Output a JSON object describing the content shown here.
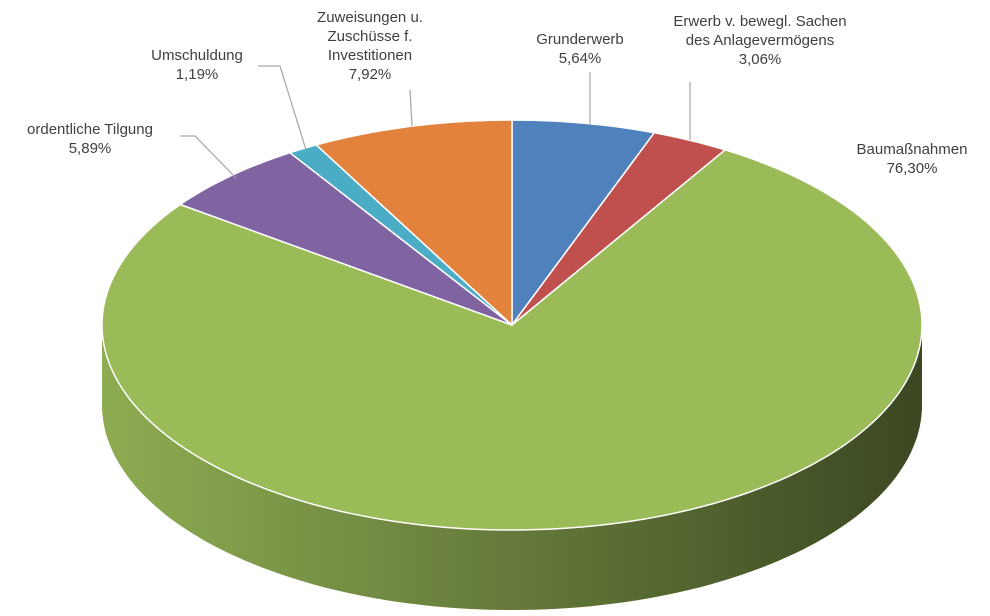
{
  "chart_data": {
    "type": "pie",
    "categories": [
      "Grunderwerb",
      "Erwerb v. bewegl. Sachen des Anlagevermögens",
      "Baumaßnahmen",
      "ordentliche Tilgung",
      "Umschuldung",
      "Zuweisungen u. Zuschüsse f. Investitionen"
    ],
    "values": [
      5.64,
      3.06,
      76.3,
      5.89,
      1.19,
      7.92
    ],
    "value_labels": [
      "5,64%",
      "3,06%",
      "76,30%",
      "5,89%",
      "1,19%",
      "7,92%"
    ],
    "colors": [
      "#4f81bd",
      "#c0504d",
      "#9bbb59",
      "#8064a2",
      "#4bacc6",
      "#e2823d"
    ],
    "legend": false
  }
}
